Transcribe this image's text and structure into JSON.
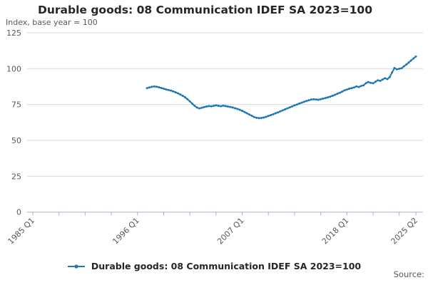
{
  "chart_data": {
    "type": "line",
    "title": "Durable goods: 08 Communication IDEF SA 2023=100",
    "ylabel_note": "Index, base year = 100",
    "x_axis": {
      "start": "1985 Q1",
      "end": "2025 Q2",
      "minor_tick_every_quarters": 11,
      "labeled_ticks": [
        "1985 Q1",
        "1996 Q1",
        "2007 Q1",
        "2018 Q1",
        "2025 Q2"
      ]
    },
    "y_axis": {
      "ticks": [
        0,
        25,
        50,
        75,
        100,
        125
      ],
      "range": [
        0,
        125
      ],
      "grid": true
    },
    "legend": {
      "position": "bottom",
      "entries": [
        "Durable goods: 08 Communication IDEF SA 2023=100"
      ]
    },
    "series": [
      {
        "name": "Durable goods: 08 Communication IDEF SA 2023=100",
        "color": "#1f77b4",
        "marker": "circle",
        "frequency": "quarterly",
        "start": "1997 Q1",
        "values": [
          86.4,
          86.9,
          87.3,
          87.6,
          87.4,
          87.0,
          86.5,
          86.0,
          85.5,
          85.1,
          84.7,
          84.2,
          83.5,
          82.8,
          82.0,
          81.1,
          80.0,
          78.7,
          77.2,
          75.6,
          74.1,
          72.9,
          72.3,
          72.7,
          73.2,
          73.6,
          73.9,
          73.7,
          74.1,
          74.4,
          74.1,
          73.8,
          74.2,
          73.9,
          73.6,
          73.3,
          72.9,
          72.4,
          71.9,
          71.3,
          70.6,
          69.8,
          68.9,
          68.0,
          67.2,
          66.3,
          65.8,
          65.5,
          65.6,
          65.9,
          66.4,
          67.0,
          67.6,
          68.2,
          68.9,
          69.5,
          70.2,
          70.9,
          71.6,
          72.3,
          73.0,
          73.7,
          74.4,
          75.0,
          75.7,
          76.3,
          76.9,
          77.4,
          77.9,
          78.4,
          78.7,
          78.5,
          78.3,
          78.7,
          79.1,
          79.5,
          80.0,
          80.5,
          81.1,
          81.8,
          82.5,
          83.2,
          84.0,
          84.8,
          85.4,
          86.0,
          86.4,
          86.9,
          87.6,
          87.2,
          87.9,
          88.4,
          89.9,
          90.7,
          90.1,
          89.8,
          90.9,
          91.9,
          91.5,
          92.4,
          93.3,
          92.7,
          94.1,
          97.3,
          100.4,
          99.5,
          99.9,
          100.3,
          101.6,
          102.9,
          104.3,
          105.7,
          107.1,
          108.4
        ]
      }
    ]
  },
  "footer": {
    "source_label": "Source:"
  },
  "colors": {
    "line": "#1f77b4",
    "text_dark": "#262626",
    "text_gray": "#595959",
    "gridline": "#d9d9d9",
    "axis": "#a3b8cc"
  }
}
